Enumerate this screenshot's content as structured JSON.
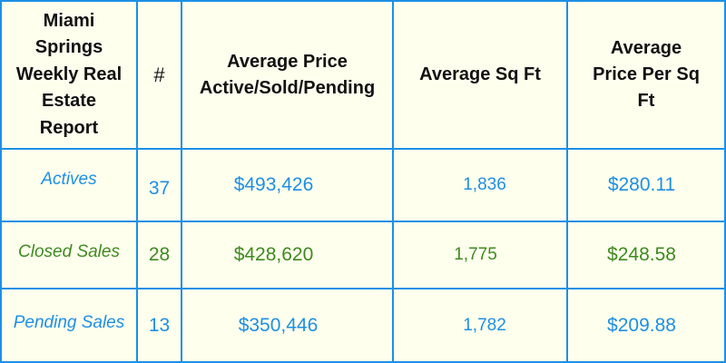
{
  "colors": {
    "grid": "#1d8fe6",
    "background": "#ffffee",
    "header_text": "#111111",
    "blue_text": "#1d8fe6",
    "green_text": "#3f8a1f"
  },
  "header": {
    "title": "Miami Springs Weekly Real Estate Report",
    "count": "#",
    "avg_price": "Average Price Active/Sold/Pending",
    "avg_sqft": "Average Sq Ft",
    "avg_price_sqft": "Average Price Per Sq Ft"
  },
  "rows": [
    {
      "label": "Actives",
      "count": "37",
      "avg_price": "$493,426",
      "avg_sqft": "1,836",
      "avg_price_sqft": "$280.11",
      "color": "#1d8fe6"
    },
    {
      "label": "Closed Sales",
      "count": "28",
      "avg_price": "$428,620",
      "avg_sqft": "1,775",
      "avg_price_sqft": "$248.58",
      "color": "#3f8a1f"
    },
    {
      "label": "Pending Sales",
      "count": "13",
      "avg_price": "$350,446",
      "avg_sqft": "1,782",
      "avg_price_sqft": "$209.88",
      "color": "#1d8fe6"
    }
  ]
}
